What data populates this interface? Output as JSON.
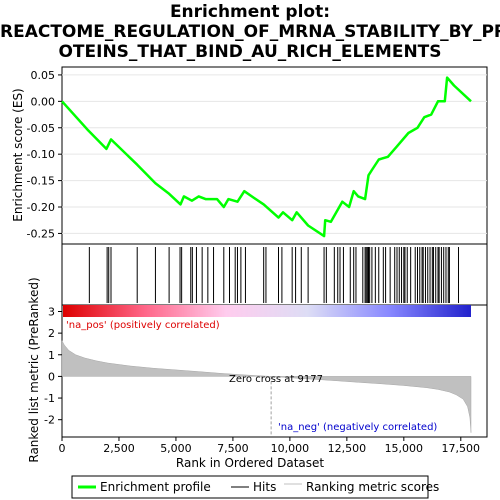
{
  "chart_data": {
    "type": "line",
    "title_lines": [
      "Enrichment plot:",
      "REACTOME_REGULATION_OF_MRNA_STABILITY_BY_PR",
      "OTEINS_THAT_BIND_AU_RICH_ELEMENTS"
    ],
    "top_panel": {
      "ylabel": "Enrichment score (ES)",
      "ylim": [
        -0.27,
        0.065
      ],
      "yticks": [
        0.05,
        0.0,
        -0.05,
        -0.1,
        -0.15,
        -0.2,
        -0.25
      ],
      "ytick_labels": [
        "0.05",
        "0.00",
        "-0.05",
        "-0.10",
        "-0.15",
        "-0.20",
        "-0.25"
      ],
      "grid": true,
      "series": [
        {
          "name": "Enrichment profile",
          "color": "#00ff00",
          "x": [
            0,
            1150,
            1950,
            2150,
            3300,
            4100,
            4700,
            5200,
            5350,
            5700,
            6000,
            6300,
            6800,
            7100,
            7300,
            7700,
            8000,
            8400,
            8850,
            9500,
            9700,
            10100,
            10300,
            10800,
            11500,
            11550,
            11800,
            12300,
            12600,
            12800,
            13000,
            13300,
            13450,
            13600,
            13900,
            14300,
            14700,
            15200,
            15600,
            15900,
            16200,
            16500,
            16800,
            16900,
            17200,
            17950
          ],
          "y": [
            0.0,
            -0.055,
            -0.09,
            -0.072,
            -0.12,
            -0.155,
            -0.175,
            -0.195,
            -0.18,
            -0.188,
            -0.18,
            -0.185,
            -0.185,
            -0.2,
            -0.185,
            -0.19,
            -0.17,
            -0.182,
            -0.195,
            -0.22,
            -0.21,
            -0.225,
            -0.21,
            -0.235,
            -0.255,
            -0.225,
            -0.228,
            -0.19,
            -0.2,
            -0.17,
            -0.18,
            -0.185,
            -0.14,
            -0.13,
            -0.11,
            -0.105,
            -0.085,
            -0.06,
            -0.05,
            -0.03,
            -0.025,
            0.0,
            0.0,
            0.045,
            0.03,
            0.0
          ]
        }
      ]
    },
    "hits_panel": {
      "legend_label": "Hits",
      "hit_ranks": [
        1200,
        1980,
        2050,
        2150,
        3300,
        4100,
        4700,
        5180,
        5250,
        5650,
        5720,
        5900,
        6150,
        6400,
        6650,
        7100,
        7350,
        7600,
        7700,
        7850,
        8050,
        8850,
        8950,
        9500,
        9650,
        10100,
        10250,
        10500,
        10800,
        11500,
        11600,
        11950,
        12100,
        12200,
        12350,
        12650,
        12800,
        12900,
        13200,
        13300,
        13350,
        13400,
        13450,
        13500,
        13600,
        13750,
        13900,
        14100,
        14200,
        14400,
        14600,
        14700,
        14800,
        14900,
        15000,
        15050,
        15150,
        15300,
        15500,
        15600,
        15700,
        15800,
        15850,
        15950,
        16050,
        16150,
        16250,
        16300,
        16400,
        16500,
        16550,
        16650,
        16750,
        16850,
        16950,
        17000,
        17400
      ]
    },
    "gradient_bar": {
      "stops": [
        "#dd0000",
        "#ff6688",
        "#ffccee",
        "#ddddf5",
        "#8888ff",
        "#2222cc"
      ]
    },
    "bottom_panel": {
      "ylabel": "Ranked list metric (PreRanked)",
      "xlabel": "Rank in Ordered Dataset",
      "ylim": [
        -2.8,
        3.3
      ],
      "yticks": [
        3,
        2,
        1,
        0,
        -1,
        -2
      ],
      "ytick_labels": [
        "3",
        "2",
        "1",
        "0",
        "-1",
        "-2"
      ],
      "xlim": [
        0,
        18650
      ],
      "xticks": [
        0,
        2500,
        5000,
        7500,
        10000,
        12500,
        15000,
        17500
      ],
      "xtick_labels": [
        "0",
        "2,500",
        "5,000",
        "7,500",
        "10,000",
        "12,500",
        "15,000",
        "17,500"
      ],
      "legend_label": "Ranking metric scores",
      "fill_color": "#c0c0c0",
      "metric_x": [
        0,
        100,
        300,
        600,
        1000,
        1500,
        2000,
        3000,
        4000,
        5000,
        6000,
        7000,
        8000,
        9177,
        10000,
        11000,
        12000,
        13000,
        14000,
        15000,
        16000,
        16500,
        17000,
        17300,
        17600,
        17800,
        17900,
        17950
      ],
      "metric_y": [
        1.65,
        1.45,
        1.2,
        1.0,
        0.85,
        0.72,
        0.62,
        0.48,
        0.38,
        0.3,
        0.22,
        0.14,
        0.07,
        0.0,
        -0.06,
        -0.13,
        -0.2,
        -0.27,
        -0.34,
        -0.42,
        -0.52,
        -0.6,
        -0.72,
        -0.85,
        -1.05,
        -1.4,
        -1.9,
        -2.6
      ],
      "zero_cross": 9177,
      "zero_cross_label": "Zero cross at 9177",
      "pos_label": "'na_pos' (positively correlated)",
      "neg_label": "'na_neg' (negatively correlated)",
      "pos_color": "#dd0000",
      "neg_color": "#0000cc"
    },
    "legend": [
      {
        "label": "Enrichment profile",
        "color": "#00ff00",
        "style": "thick-line"
      },
      {
        "label": "Hits",
        "color": "#000000",
        "style": "thin-line"
      },
      {
        "label": "Ranking metric scores",
        "color": "#c0c0c0",
        "style": "thin-line"
      }
    ]
  }
}
